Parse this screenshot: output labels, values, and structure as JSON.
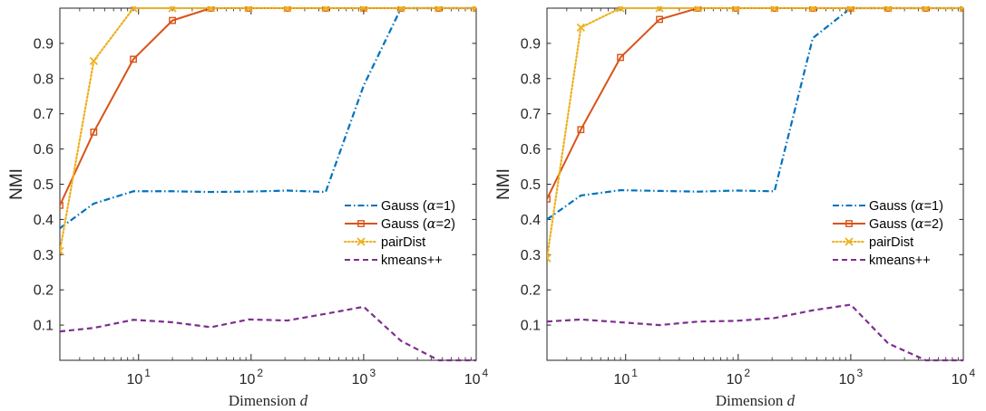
{
  "colors": {
    "gauss_a1": "#0072BD",
    "gauss_a2": "#D95319",
    "pairdist": "#EDB120",
    "kmeans": "#7E2F8E"
  },
  "chart_data": [
    {
      "type": "line",
      "xlabel": "Dimension d",
      "ylabel": "NMI",
      "xscale": "log",
      "xlim": [
        2,
        10000
      ],
      "ylim": [
        0,
        1
      ],
      "xticks": [
        10,
        100,
        1000,
        10000
      ],
      "xtick_labels": [
        {
          "base": "10",
          "exp": "1"
        },
        {
          "base": "10",
          "exp": "2"
        },
        {
          "base": "10",
          "exp": "3"
        },
        {
          "base": "10",
          "exp": "4"
        }
      ],
      "yticks": [
        0.1,
        0.2,
        0.3,
        0.4,
        0.5,
        0.6,
        0.7,
        0.8,
        0.9
      ],
      "ytick_labels": [
        "0.1",
        "0.2",
        "0.3",
        "0.4",
        "0.5",
        "0.6",
        "0.7",
        "0.8",
        "0.9"
      ],
      "grid": false,
      "legend_position": "right",
      "x": [
        2,
        4,
        9,
        20,
        44,
        95,
        210,
        460,
        1000,
        2150,
        4640,
        10000
      ],
      "series": [
        {
          "name": "Gauss (α=1)",
          "label_prefix": "Gauss (",
          "label_symbol": "α",
          "label_suffix": "=1)",
          "style": "dashdot",
          "marker": "none",
          "values": [
            0.375,
            0.445,
            0.48,
            0.48,
            0.478,
            0.479,
            0.482,
            0.478,
            0.78,
            1.0,
            1.0,
            1.0
          ]
        },
        {
          "name": "Gauss (α=2)",
          "label_prefix": "Gauss (",
          "label_symbol": "α",
          "label_suffix": "=2)",
          "style": "solid",
          "marker": "square",
          "values": [
            0.44,
            0.648,
            0.855,
            0.965,
            1.0,
            1.0,
            1.0,
            1.0,
            1.0,
            1.0,
            1.0,
            1.0
          ]
        },
        {
          "name": "pairDist",
          "label_prefix": "pairDist",
          "label_symbol": "",
          "label_suffix": "",
          "style": "dotted",
          "marker": "x",
          "values": [
            0.31,
            0.85,
            1.0,
            1.0,
            1.0,
            1.0,
            1.0,
            1.0,
            1.0,
            1.0,
            1.0,
            1.0
          ]
        },
        {
          "name": "kmeans++",
          "label_prefix": "kmeans++",
          "label_symbol": "",
          "label_suffix": "",
          "style": "dashed",
          "marker": "none",
          "values": [
            0.082,
            0.092,
            0.115,
            0.108,
            0.094,
            0.116,
            0.113,
            0.132,
            0.152,
            0.055,
            0.0,
            0.0
          ]
        }
      ]
    },
    {
      "type": "line",
      "xlabel": "Dimension d",
      "ylabel": "NMI",
      "xscale": "log",
      "xlim": [
        2,
        10000
      ],
      "ylim": [
        0,
        1
      ],
      "xticks": [
        10,
        100,
        1000,
        10000
      ],
      "xtick_labels": [
        {
          "base": "10",
          "exp": "1"
        },
        {
          "base": "10",
          "exp": "2"
        },
        {
          "base": "10",
          "exp": "3"
        },
        {
          "base": "10",
          "exp": "4"
        }
      ],
      "yticks": [
        0.1,
        0.2,
        0.3,
        0.4,
        0.5,
        0.6,
        0.7,
        0.8,
        0.9
      ],
      "ytick_labels": [
        "0.1",
        "0.2",
        "0.3",
        "0.4",
        "0.5",
        "0.6",
        "0.7",
        "0.8",
        "0.9"
      ],
      "grid": false,
      "legend_position": "right",
      "x": [
        2,
        4,
        9,
        20,
        44,
        95,
        210,
        460,
        1000,
        2150,
        4640,
        10000
      ],
      "series": [
        {
          "name": "Gauss (α=1)",
          "label_prefix": "Gauss (",
          "label_symbol": "α",
          "label_suffix": "=1)",
          "style": "dashdot",
          "marker": "none",
          "values": [
            0.4,
            0.468,
            0.483,
            0.481,
            0.479,
            0.482,
            0.48,
            0.915,
            1.0,
            1.0,
            1.0,
            1.0
          ]
        },
        {
          "name": "Gauss (α=2)",
          "label_prefix": "Gauss (",
          "label_symbol": "α",
          "label_suffix": "=2)",
          "style": "solid",
          "marker": "square",
          "values": [
            0.458,
            0.655,
            0.86,
            0.968,
            1.0,
            1.0,
            1.0,
            1.0,
            1.0,
            1.0,
            1.0,
            1.0
          ]
        },
        {
          "name": "pairDist",
          "label_prefix": "pairDist",
          "label_symbol": "",
          "label_suffix": "",
          "style": "dotted",
          "marker": "x",
          "values": [
            0.29,
            0.945,
            1.0,
            1.0,
            1.0,
            1.0,
            1.0,
            1.0,
            1.0,
            1.0,
            1.0,
            1.0
          ]
        },
        {
          "name": "kmeans++",
          "label_prefix": "kmeans++",
          "label_symbol": "",
          "label_suffix": "",
          "style": "dashed",
          "marker": "none",
          "values": [
            0.11,
            0.116,
            0.108,
            0.1,
            0.11,
            0.112,
            0.12,
            0.142,
            0.158,
            0.048,
            0.0,
            0.0
          ]
        }
      ]
    }
  ]
}
